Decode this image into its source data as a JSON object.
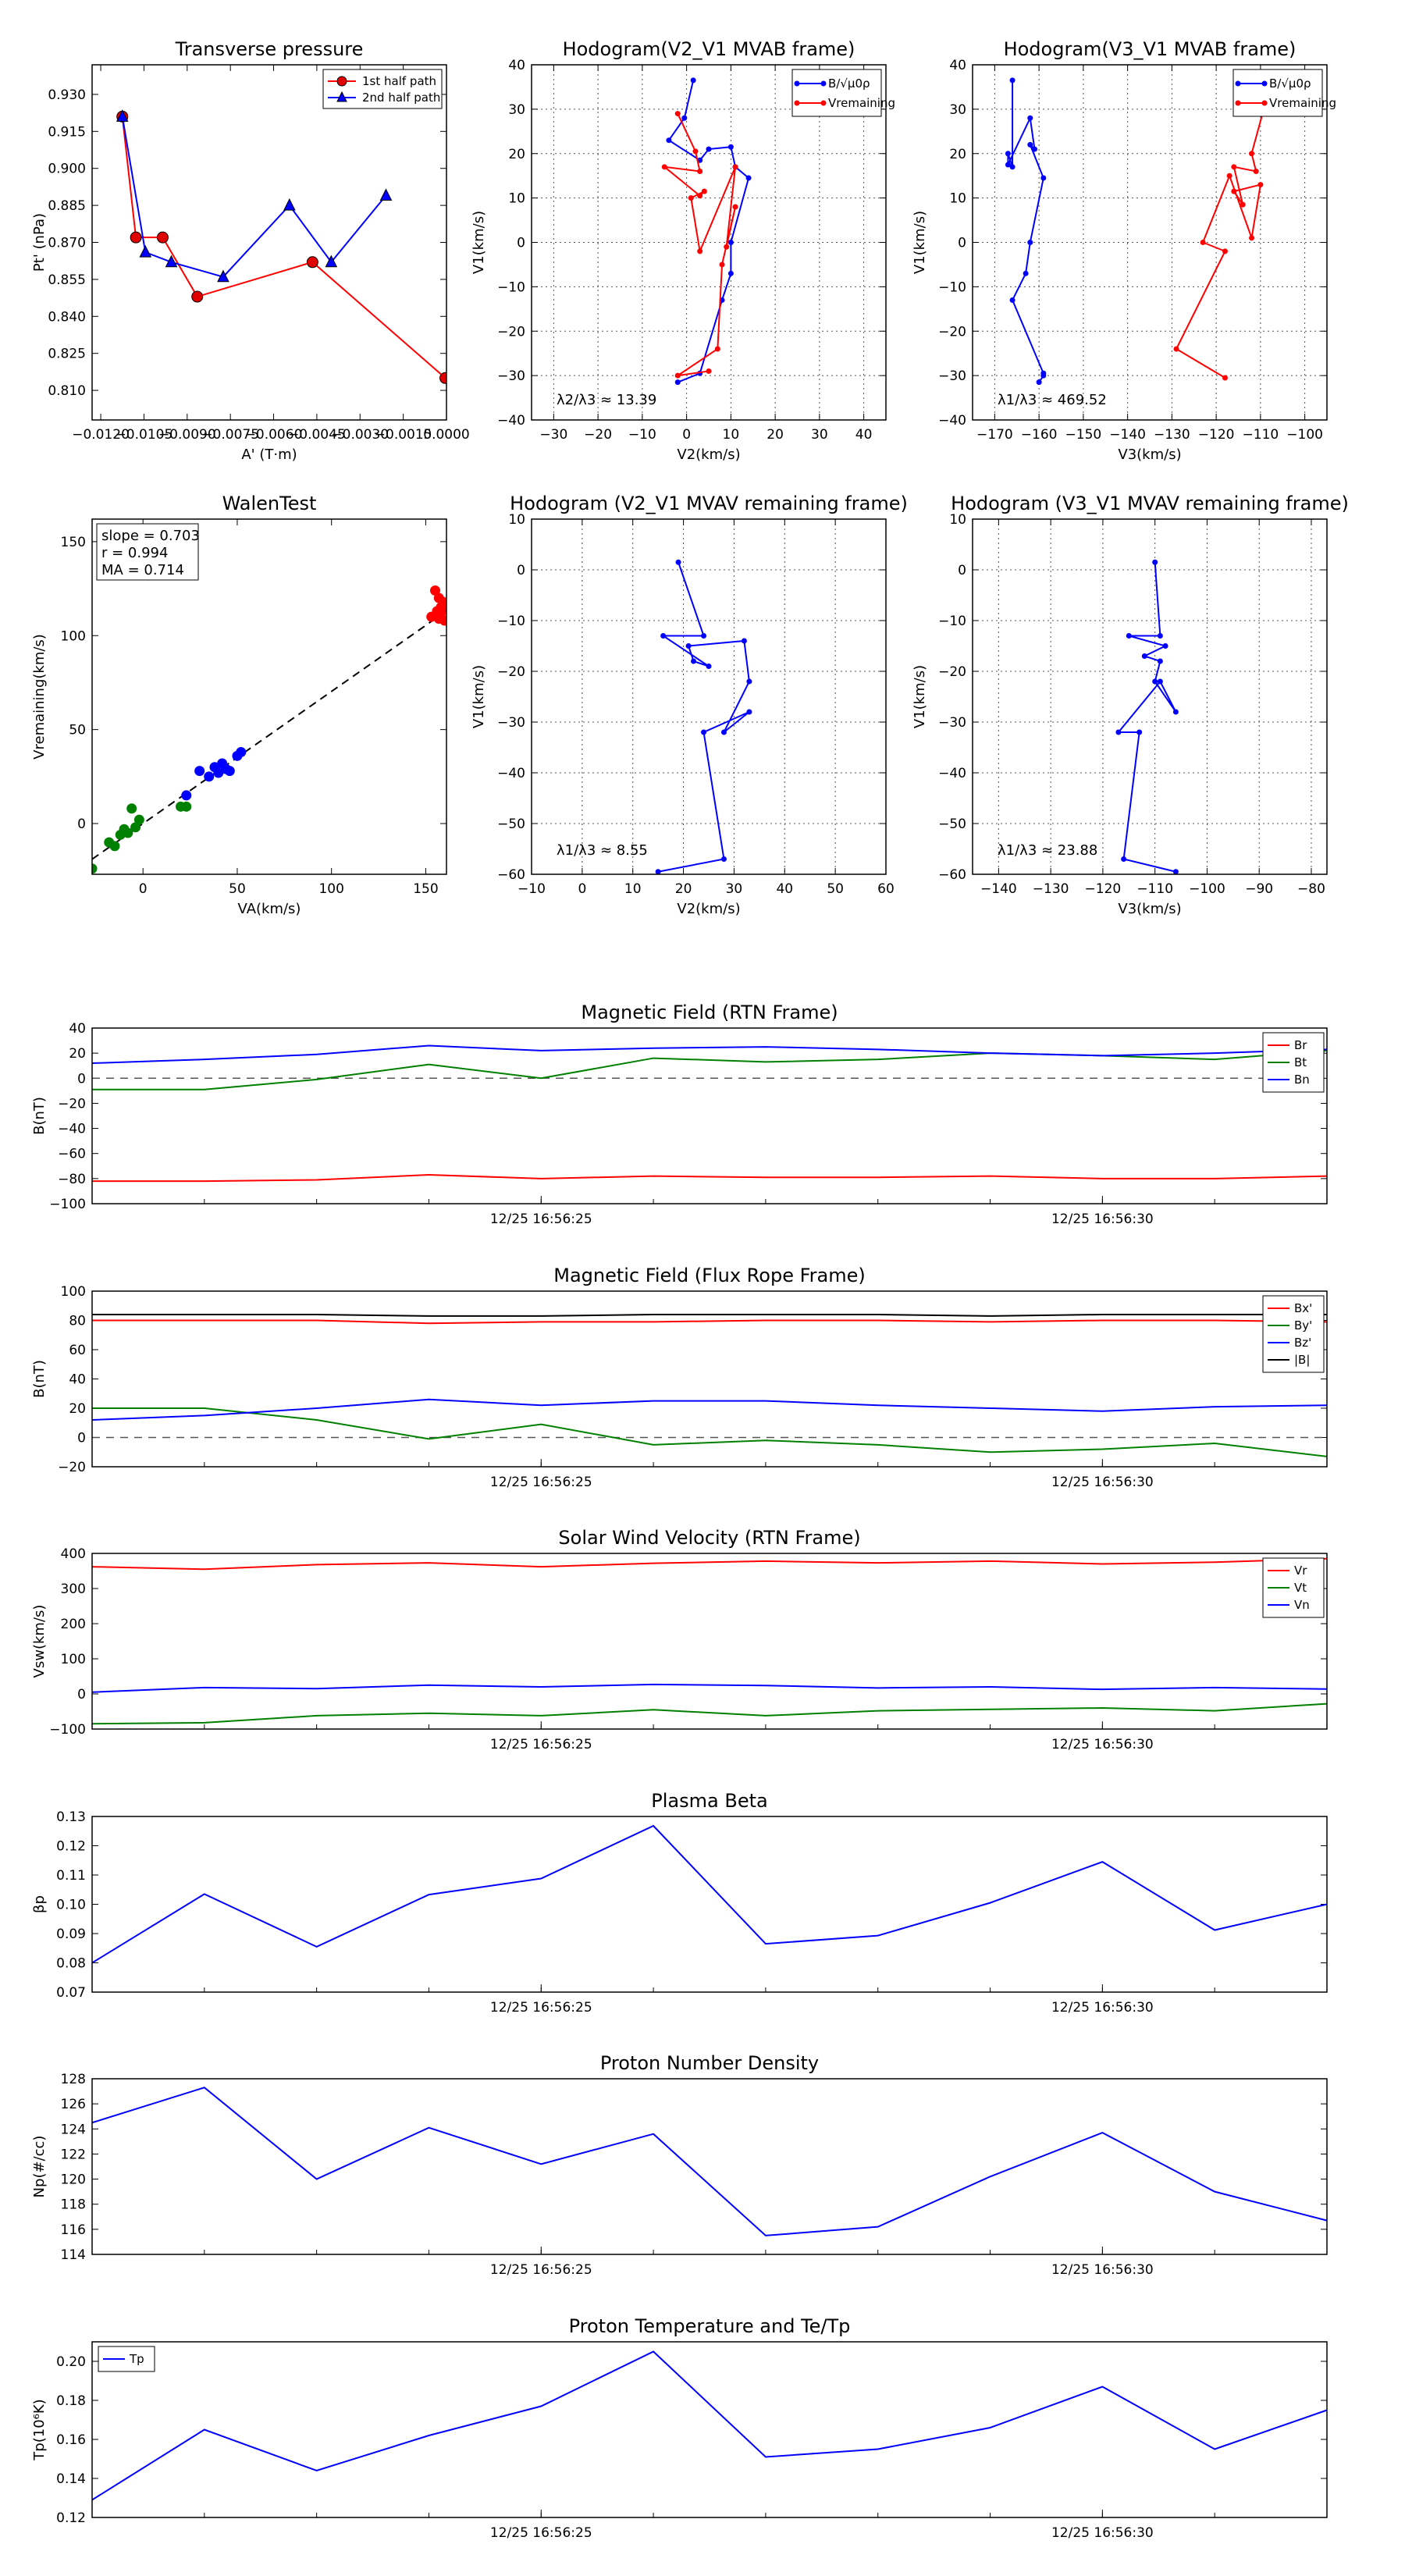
{
  "colors": {
    "red": "#ff0000",
    "blue": "#0000ff",
    "green": "#008000",
    "black": "#000000",
    "red_fill": "#e00000"
  },
  "chart_data": [
    {
      "id": "pt",
      "type": "line",
      "title": "Transverse pressure",
      "xlabel": "A' (T·m)",
      "ylabel": "Pt' (nPa)",
      "xlim": [
        -0.0123,
        0.0
      ],
      "ylim": [
        0.798,
        0.942
      ],
      "xticks": [
        -0.012,
        -0.0105,
        -0.009,
        -0.0075,
        -0.006,
        -0.0045,
        -0.003,
        -0.0015,
        0.0
      ],
      "xtick_labels": [
        "−0.0120",
        "−0.0105",
        "−0.0090",
        "−0.0075",
        "−0.0060",
        "−0.0045",
        "−0.0030",
        "−0.0015",
        "0.0000"
      ],
      "yticks": [
        0.81,
        0.825,
        0.84,
        0.855,
        0.87,
        0.885,
        0.9,
        0.915,
        0.93
      ],
      "ytick_labels": [
        "0.810",
        "0.825",
        "0.840",
        "0.855",
        "0.870",
        "0.885",
        "0.900",
        "0.915",
        "0.930"
      ],
      "legend": {
        "position": "top-right",
        "entries": [
          "1st half path",
          "2nd half path"
        ]
      },
      "series": [
        {
          "name": "1st half path",
          "color": "red",
          "marker": "circle",
          "x": [
            -0.01125,
            -0.01078,
            -0.00985,
            -0.00865,
            -0.00465,
            -4e-05
          ],
          "y": [
            0.921,
            0.872,
            0.872,
            0.848,
            0.862,
            0.815
          ]
        },
        {
          "name": "2nd half path",
          "color": "blue",
          "marker": "triangle",
          "x": [
            -0.01125,
            -0.01045,
            -0.00955,
            -0.00775,
            -0.00545,
            -0.004,
            -0.0021
          ],
          "y": [
            0.921,
            0.866,
            0.862,
            0.856,
            0.885,
            0.862,
            0.889
          ]
        }
      ]
    },
    {
      "id": "h1",
      "type": "line",
      "title": "Hodogram(V2_V1 MVAB frame)",
      "xlabel": "V2(km/s)",
      "ylabel": "V1(km/s)",
      "xlim": [
        -35,
        45
      ],
      "ylim": [
        -40,
        40
      ],
      "xticks": [
        -30,
        -20,
        -10,
        0,
        10,
        20,
        30,
        40
      ],
      "yticks": [
        -40,
        -30,
        -20,
        -10,
        0,
        10,
        20,
        30,
        40
      ],
      "grid": true,
      "legend": {
        "position": "top-right",
        "entries": [
          "B/√μ0ρ",
          "Vremaining"
        ]
      },
      "annotation": "λ2/λ3 ≈ 13.39",
      "series": [
        {
          "name": "B/√μ0ρ",
          "color": "blue",
          "x": [
            1.5,
            -0.5,
            -4,
            3,
            5,
            10,
            11,
            14,
            10,
            10,
            8,
            3,
            -2
          ],
          "y": [
            36.5,
            28,
            23,
            18.5,
            21,
            21.5,
            17,
            14.5,
            0,
            -7,
            -13,
            -29.5,
            -31.5
          ]
        },
        {
          "name": "Vremaining",
          "color": "red",
          "x": [
            -2,
            2,
            3,
            -5,
            3,
            4,
            1,
            3,
            11,
            9,
            11,
            8,
            7,
            -2,
            5
          ],
          "y": [
            29,
            20.5,
            16,
            17,
            10.5,
            11.5,
            10,
            -2,
            17,
            -1,
            8,
            -5,
            -24,
            -30,
            -29
          ]
        }
      ]
    },
    {
      "id": "h2",
      "type": "line",
      "title": "Hodogram(V3_V1 MVAB frame)",
      "xlabel": "V3(km/s)",
      "ylabel": "V1(km/s)",
      "xlim": [
        -175,
        -95
      ],
      "ylim": [
        -40,
        40
      ],
      "xticks": [
        -170,
        -160,
        -150,
        -140,
        -130,
        -120,
        -110,
        -100
      ],
      "yticks": [
        -40,
        -30,
        -20,
        -10,
        0,
        10,
        20,
        30,
        40
      ],
      "grid": true,
      "legend": {
        "position": "top-right",
        "entries": [
          "B/√μ0ρ",
          "Vremaining"
        ]
      },
      "annotation": "λ1/λ3 ≈ 469.52",
      "series": [
        {
          "name": "B/√μ0ρ",
          "color": "blue",
          "x": [
            -166,
            -166,
            -167,
            -167,
            -162,
            -161,
            -162,
            -159,
            -162,
            -163,
            -166,
            -159,
            -159,
            -160
          ],
          "y": [
            36.5,
            17,
            20,
            17.5,
            28,
            21,
            22,
            14.5,
            0,
            -7,
            -13,
            -29.5,
            -30,
            -31.5
          ]
        },
        {
          "name": "Vremaining",
          "color": "red",
          "x": [
            -109,
            -112,
            -111,
            -116,
            -114,
            -116,
            -110,
            -112,
            -117,
            -123,
            -118,
            -129,
            -118
          ],
          "y": [
            31,
            20,
            16,
            17,
            8.5,
            11.5,
            13,
            1,
            15,
            0,
            -2,
            -24,
            -30.5
          ]
        }
      ]
    },
    {
      "id": "walen",
      "type": "scatter",
      "title": "WalenTest",
      "xlabel": "VA(km/s)",
      "ylabel": "Vremaining(km/s)",
      "xlim": [
        -27,
        161
      ],
      "ylim": [
        -27,
        162
      ],
      "xticks": [
        0,
        50,
        100,
        150
      ],
      "yticks": [
        0,
        50,
        100,
        150
      ],
      "annotation_lines": [
        "slope = 0.703",
        "r = 0.994",
        "MA = 0.714"
      ],
      "fit": {
        "slope": 0.703,
        "x": [
          -27,
          161
        ]
      },
      "series": [
        {
          "name": "green",
          "color": "green",
          "x": [
            -27,
            -18,
            -15,
            -12,
            -10,
            -8,
            -6,
            -4,
            -2,
            20,
            23
          ],
          "y": [
            -24,
            -10,
            -12,
            -6,
            -3,
            -5,
            8,
            -2,
            2,
            9,
            9
          ]
        },
        {
          "name": "blue",
          "color": "blue",
          "x": [
            23,
            30,
            35,
            38,
            40,
            42,
            44,
            46,
            50,
            52
          ],
          "y": [
            15,
            28,
            25,
            30,
            27,
            32,
            29,
            28,
            36,
            38
          ]
        },
        {
          "name": "red",
          "color": "red",
          "x": [
            153,
            155,
            156,
            157,
            158,
            159,
            160,
            161,
            157,
            158
          ],
          "y": [
            110,
            124,
            113,
            120,
            115,
            118,
            108,
            116,
            109,
            112
          ]
        }
      ]
    },
    {
      "id": "h3",
      "type": "line",
      "title": "Hodogram (V2_V1 MVAV remaining frame)",
      "xlabel": "V2(km/s)",
      "ylabel": "V1(km/s)",
      "xlim": [
        -10,
        60
      ],
      "ylim": [
        -60,
        10
      ],
      "xticks": [
        -10,
        0,
        10,
        20,
        30,
        40,
        50,
        60
      ],
      "yticks": [
        -60,
        -50,
        -40,
        -30,
        -20,
        -10,
        0,
        10
      ],
      "grid": true,
      "annotation": "λ1/λ3 ≈ 8.55",
      "series": [
        {
          "name": "B",
          "color": "blue",
          "x": [
            19,
            24,
            16,
            25,
            22,
            21,
            32,
            33,
            28,
            33,
            24,
            28,
            15
          ],
          "y": [
            1.5,
            -13,
            -13,
            -19,
            -18,
            -15,
            -14,
            -22,
            -32,
            -28,
            -32,
            -57,
            -59.5
          ]
        }
      ]
    },
    {
      "id": "h4",
      "type": "line",
      "title": "Hodogram (V3_V1 MVAV remaining frame)",
      "xlabel": "V3(km/s)",
      "ylabel": "V1(km/s)",
      "xlim": [
        -145,
        -77
      ],
      "ylim": [
        -60,
        10
      ],
      "xticks": [
        -140,
        -130,
        -120,
        -110,
        -100,
        -90,
        -80
      ],
      "yticks": [
        -60,
        -50,
        -40,
        -30,
        -20,
        -10,
        0,
        10
      ],
      "grid": true,
      "annotation": "λ1/λ3 ≈ 23.88",
      "series": [
        {
          "name": "B",
          "color": "blue",
          "x": [
            -110,
            -109,
            -115,
            -108,
            -112,
            -109,
            -110,
            -106,
            -109,
            -117,
            -113,
            -116,
            -106
          ],
          "y": [
            1.5,
            -13,
            -13,
            -15,
            -17,
            -18,
            -22,
            -28,
            -22,
            -32,
            -32,
            -57,
            -59.5
          ]
        }
      ]
    },
    {
      "id": "ts1",
      "type": "line",
      "title": "Magnetic Field (RTN Frame)",
      "ylabel": "B(nT)",
      "ylim": [
        -100,
        40
      ],
      "yticks": [
        -100,
        -80,
        -60,
        -40,
        -20,
        0,
        20,
        40
      ],
      "ytick_labels": [
        "−100",
        "−80",
        "−60",
        "−40",
        "−20",
        "0",
        "20",
        "40"
      ],
      "xtick_labels": [
        "12/25 16:56:25",
        "12/25 16:56:30"
      ],
      "xtick_index": [
        4,
        9
      ],
      "zero_line": true,
      "legend": {
        "position": "top-right",
        "entries": [
          "Br",
          "Bt",
          "Bn"
        ]
      },
      "series": [
        {
          "name": "Br",
          "color": "red",
          "values": [
            -82,
            -82,
            -81,
            -77,
            -80,
            -78,
            -79,
            -79,
            -78,
            -80,
            -80,
            -78
          ]
        },
        {
          "name": "Bt",
          "color": "green",
          "values": [
            -9,
            -9,
            -1,
            11,
            0,
            16,
            13,
            15,
            20,
            18,
            15,
            22
          ]
        },
        {
          "name": "Bn",
          "color": "blue",
          "values": [
            12,
            15,
            19,
            26,
            22,
            24,
            25,
            23,
            20,
            18,
            20,
            23
          ]
        }
      ]
    },
    {
      "id": "ts2",
      "type": "line",
      "title": "Magnetic Field (Flux Rope Frame)",
      "ylabel": "B(nT)",
      "ylim": [
        -20,
        100
      ],
      "yticks": [
        -20,
        0,
        20,
        40,
        60,
        80,
        100
      ],
      "ytick_labels": [
        "−20",
        "0",
        "20",
        "40",
        "60",
        "80",
        "100"
      ],
      "xtick_labels": [
        "12/25 16:56:25",
        "12/25 16:56:30"
      ],
      "xtick_index": [
        4,
        9
      ],
      "zero_line": true,
      "legend": {
        "position": "top-right",
        "entries": [
          "Bx'",
          "By'",
          "Bz'",
          "|B|"
        ]
      },
      "series": [
        {
          "name": "Bx'",
          "color": "red",
          "values": [
            80,
            80,
            80,
            78,
            79,
            79,
            80,
            80,
            79,
            80,
            80,
            79
          ]
        },
        {
          "name": "By'",
          "color": "green",
          "values": [
            20,
            20,
            12,
            -1,
            9,
            -5,
            -2,
            -5,
            -10,
            -8,
            -4,
            -13
          ]
        },
        {
          "name": "Bz'",
          "color": "blue",
          "values": [
            12,
            15,
            20,
            26,
            22,
            25,
            25,
            22,
            20,
            18,
            21,
            22
          ]
        },
        {
          "name": "|B|",
          "color": "black",
          "values": [
            84,
            84,
            84,
            83,
            83,
            84,
            84,
            84,
            83,
            84,
            84,
            84
          ]
        }
      ]
    },
    {
      "id": "ts3",
      "type": "line",
      "title": "Solar Wind Velocity (RTN Frame)",
      "ylabel": "Vsw(km/s)",
      "ylim": [
        -100,
        400
      ],
      "yticks": [
        -100,
        0,
        100,
        200,
        300,
        400
      ],
      "ytick_labels": [
        "−100",
        "0",
        "100",
        "200",
        "300",
        "400"
      ],
      "xtick_labels": [
        "12/25 16:56:25",
        "12/25 16:56:30"
      ],
      "xtick_index": [
        4,
        9
      ],
      "legend": {
        "position": "top-right",
        "entries": [
          "Vr",
          "Vt",
          "Vn"
        ]
      },
      "series": [
        {
          "name": "Vr",
          "color": "red",
          "values": [
            362,
            355,
            368,
            373,
            362,
            372,
            378,
            373,
            378,
            370,
            375,
            385
          ]
        },
        {
          "name": "Vt",
          "color": "green",
          "values": [
            -85,
            -82,
            -62,
            -55,
            -62,
            -45,
            -62,
            -48,
            -44,
            -40,
            -48,
            -28
          ]
        },
        {
          "name": "Vn",
          "color": "blue",
          "values": [
            5,
            18,
            15,
            25,
            20,
            27,
            24,
            17,
            20,
            13,
            18,
            14
          ]
        }
      ]
    },
    {
      "id": "ts4",
      "type": "line",
      "title": "Plasma Beta",
      "ylabel": "βp",
      "ylim": [
        0.07,
        0.13
      ],
      "yticks": [
        0.07,
        0.08,
        0.09,
        0.1,
        0.11,
        0.12,
        0.13
      ],
      "ytick_labels": [
        "0.07",
        "0.08",
        "0.09",
        "0.10",
        "0.11",
        "0.12",
        "0.13"
      ],
      "xtick_labels": [
        "12/25 16:56:25",
        "12/25 16:56:30"
      ],
      "xtick_index": [
        4,
        9
      ],
      "series": [
        {
          "name": "Beta",
          "color": "blue",
          "values": [
            0.08,
            0.1035,
            0.0855,
            0.1033,
            0.1088,
            0.1268,
            0.0865,
            0.0893,
            0.1005,
            0.1145,
            0.0912,
            0.1
          ]
        }
      ]
    },
    {
      "id": "ts5",
      "type": "line",
      "title": "Proton Number Density",
      "ylabel": "Np(#/cc)",
      "ylim": [
        114,
        128
      ],
      "yticks": [
        114,
        116,
        118,
        120,
        122,
        124,
        126,
        128
      ],
      "ytick_labels": [
        "114",
        "116",
        "118",
        "120",
        "122",
        "124",
        "126",
        "128"
      ],
      "xtick_labels": [
        "12/25 16:56:25",
        "12/25 16:56:30"
      ],
      "xtick_index": [
        4,
        9
      ],
      "series": [
        {
          "name": "Np",
          "color": "blue",
          "values": [
            124.5,
            127.3,
            120,
            124.1,
            121.2,
            123.6,
            115.5,
            116.2,
            120.2,
            123.7,
            119,
            116.7
          ]
        }
      ]
    },
    {
      "id": "ts6",
      "type": "line",
      "title": "Proton Temperature and Te/Tp",
      "ylabel": "Tp(10⁶K)",
      "ylim": [
        0.12,
        0.21
      ],
      "yticks": [
        0.12,
        0.14,
        0.16,
        0.18,
        0.2
      ],
      "ytick_labels": [
        "0.12",
        "0.14",
        "0.16",
        "0.18",
        "0.20"
      ],
      "xtick_labels": [
        "12/25 16:56:25",
        "12/25 16:56:30"
      ],
      "xtick_index": [
        4,
        9
      ],
      "legend": {
        "position": "top-left",
        "entries": [
          "Tp"
        ]
      },
      "series": [
        {
          "name": "Tp",
          "color": "blue",
          "values": [
            0.129,
            0.165,
            0.144,
            0.162,
            0.177,
            0.205,
            0.151,
            0.155,
            0.166,
            0.187,
            0.155,
            0.175
          ]
        }
      ]
    }
  ]
}
